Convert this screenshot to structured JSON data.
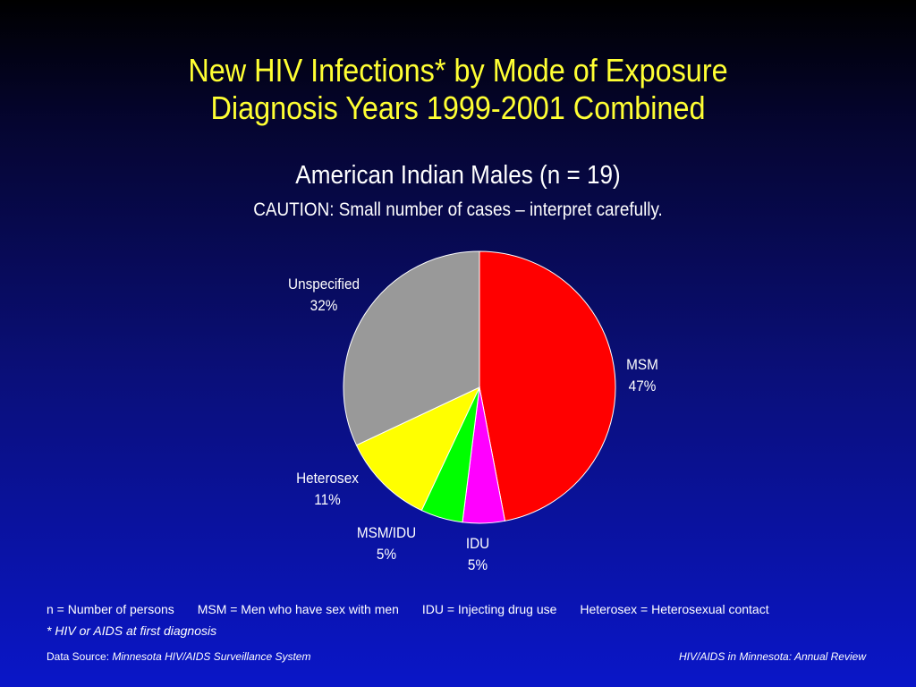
{
  "slide": {
    "title_line1": "New HIV Infections* by Mode of Exposure",
    "title_line2": "Diagnosis Years 1999-2001 Combined",
    "subtitle": "American Indian Males (n = 19)",
    "caution": "CAUTION: Small number of cases – interpret carefully."
  },
  "chart_data": {
    "type": "pie",
    "start_angle_deg": 0,
    "direction": "clockwise",
    "slices": [
      {
        "name": "MSM",
        "label": "47%",
        "value": 47,
        "color": "#ff0000"
      },
      {
        "name": "IDU",
        "label": "5%",
        "value": 5,
        "color": "#ff00ff"
      },
      {
        "name": "MSM/IDU",
        "label": "5%",
        "value": 5,
        "color": "#00ff00"
      },
      {
        "name": "Heterosex",
        "label": "11%",
        "value": 11,
        "color": "#ffff00"
      },
      {
        "name": "Unspecified",
        "label": "32%",
        "value": 32,
        "color": "#999999"
      }
    ]
  },
  "footnotes": {
    "n_def": "n = Number of persons",
    "msm_def": "MSM = Men who have sex with men",
    "idu_def": "IDU = Injecting drug use",
    "het_def": "Heterosex = Heterosexual contact",
    "star": "* HIV or AIDS at first diagnosis"
  },
  "footer": {
    "source_prefix": "Data Source: ",
    "source_name": "Minnesota HIV/AIDS Surveillance System",
    "review": "HIV/AIDS in Minnesota: Annual Review"
  }
}
